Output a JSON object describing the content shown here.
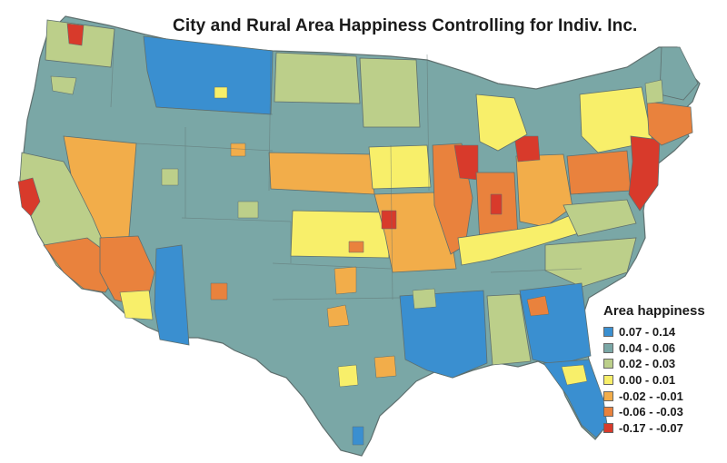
{
  "title": "City and Rural Area Happiness Controlling for Indiv. Inc.",
  "legend": {
    "title": "Area happiness",
    "items": [
      {
        "label": "0.07 - 0.14",
        "color": "#3a8fd0"
      },
      {
        "label": "0.04 - 0.06",
        "color": "#7aa7a6"
      },
      {
        "label": "0.02 - 0.03",
        "color": "#bccf8a"
      },
      {
        "label": "0.00 - 0.01",
        "color": "#f8ef6a"
      },
      {
        "label": "-0.02 - -0.01",
        "color": "#f2ad4a"
      },
      {
        "label": "-0.06 - -0.03",
        "color": "#e9823d"
      },
      {
        "label": "-0.17 - -0.07",
        "color": "#d83a2b"
      }
    ]
  }
}
